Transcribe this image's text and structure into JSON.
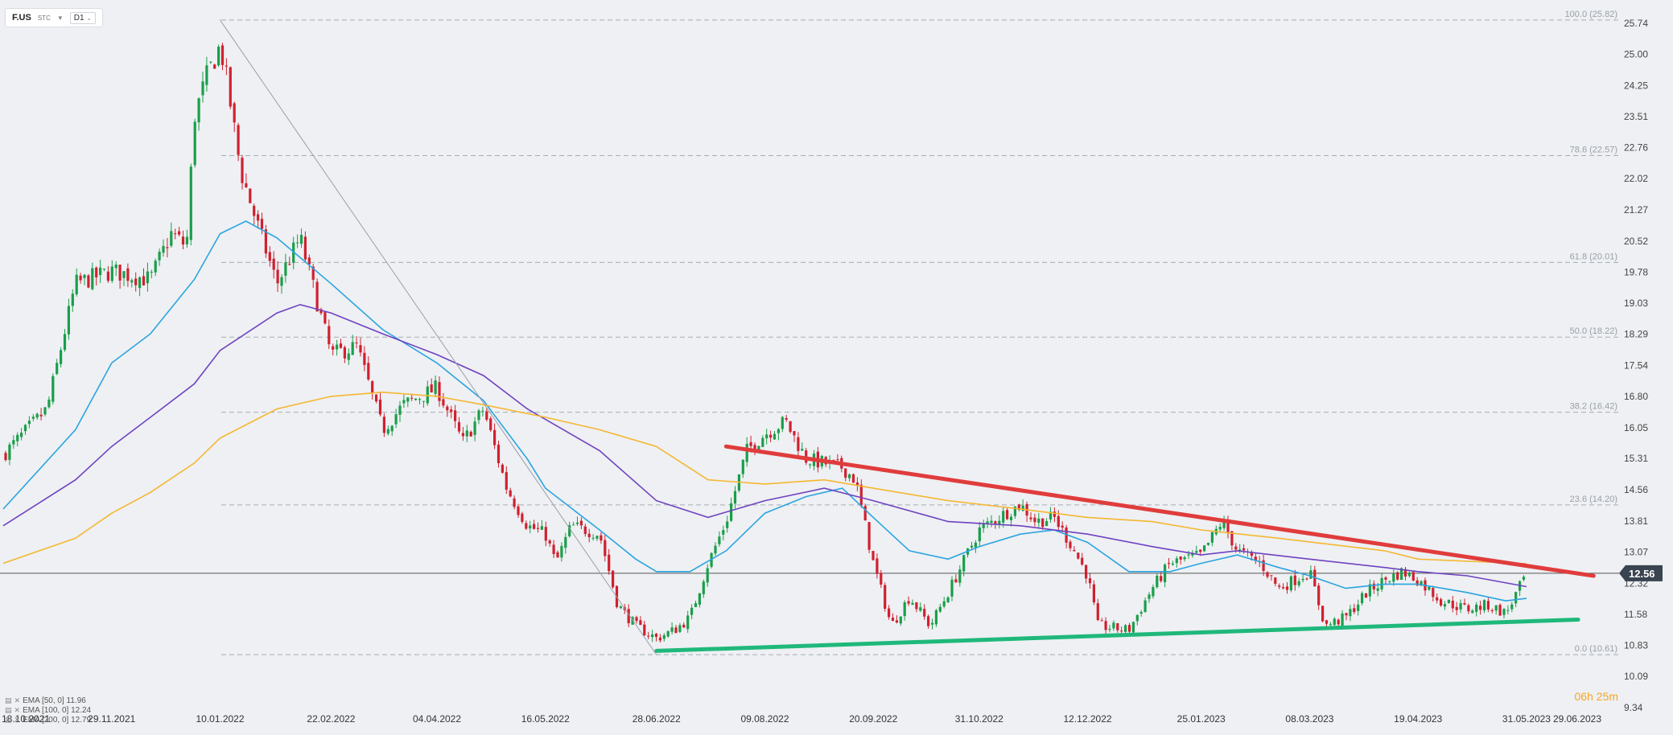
{
  "toolbar": {
    "symbol": "F.US",
    "market": "STC",
    "timeframe": "D1"
  },
  "legend": [
    {
      "label": "EMA  [50, 0]  11.96",
      "color": "#2aa4e0"
    },
    {
      "label": "EMA  [100, 0]  12.24",
      "color": "#6f42c1"
    },
    {
      "label": "EMA  [200, 0]  12.79",
      "color": "#f5b731"
    }
  ],
  "timer": {
    "hours": "06",
    "h_unit": "h",
    "minutes": "25",
    "m_unit": "m"
  },
  "chart_data": {
    "type": "candlestick",
    "y_axis": {
      "range": [
        9.34,
        26.3
      ],
      "ticks": [
        "25.74",
        "25.00",
        "24.25",
        "23.51",
        "22.76",
        "22.02",
        "21.27",
        "20.52",
        "19.78",
        "19.03",
        "18.29",
        "17.54",
        "16.80",
        "16.05",
        "15.31",
        "14.56",
        "13.81",
        "13.07",
        "12.32",
        "11.58",
        "10.83",
        "10.09",
        "9.34"
      ]
    },
    "x_axis": {
      "ticks": [
        "18.10.2021",
        "29.11.2021",
        "10.01.2022",
        "22.02.2022",
        "04.04.2022",
        "16.05.2022",
        "28.06.2022",
        "09.08.2022",
        "20.09.2022",
        "31.10.2022",
        "12.12.2022",
        "25.01.2023",
        "08.03.2023",
        "19.04.2023",
        "31.05.2023",
        "29.06.2023"
      ]
    },
    "current_price": {
      "label": "12.56",
      "value": 12.56
    },
    "fibonacci": [
      {
        "label": "100.0 (25.82)",
        "value": 25.82
      },
      {
        "label": "78.6 (22.57)",
        "value": 22.57
      },
      {
        "label": "61.8 (20.01)",
        "value": 20.01
      },
      {
        "label": "50.0 (18.22)",
        "value": 18.22
      },
      {
        "label": "38.2 (16.42)",
        "value": 16.42
      },
      {
        "label": "23.6 (14.20)",
        "value": 14.2
      },
      {
        "label": "0.0 (10.61)",
        "value": 10.61
      }
    ],
    "price_path": [
      [
        "18.10.2021",
        15.4
      ],
      [
        "04.11.2021",
        16.5
      ],
      [
        "15.11.2021",
        19.5
      ],
      [
        "29.11.2021",
        19.8
      ],
      [
        "14.12.2021",
        19.6
      ],
      [
        "22.12.2021",
        20.7
      ],
      [
        "28.12.2021",
        20.4
      ],
      [
        "31.12.2021",
        23.5
      ],
      [
        "05.01.2022",
        24.5
      ],
      [
        "10.01.2022",
        25.2
      ],
      [
        "12.01.2022",
        24.6
      ],
      [
        "18.01.2022",
        22.2
      ],
      [
        "24.01.2022",
        21.0
      ],
      [
        "01.02.2022",
        19.5
      ],
      [
        "10.02.2022",
        20.6
      ],
      [
        "22.02.2022",
        17.8
      ],
      [
        "04.03.2022",
        18.0
      ],
      [
        "14.03.2022",
        16.0
      ],
      [
        "22.03.2022",
        16.6
      ],
      [
        "04.04.2022",
        17.0
      ],
      [
        "14.04.2022",
        15.7
      ],
      [
        "22.04.2022",
        16.5
      ],
      [
        "01.05.2022",
        14.6
      ],
      [
        "09.05.2022",
        13.7
      ],
      [
        "16.05.2022",
        13.5
      ],
      [
        "20.05.2022",
        12.8
      ],
      [
        "26.05.2022",
        13.7
      ],
      [
        "06.06.2022",
        13.5
      ],
      [
        "13.06.2022",
        11.8
      ],
      [
        "20.06.2022",
        11.3
      ],
      [
        "28.06.2022",
        11.0
      ],
      [
        "05.07.2022",
        11.2
      ],
      [
        "11.07.2022",
        11.5
      ],
      [
        "18.07.2022",
        12.8
      ],
      [
        "25.07.2022",
        13.8
      ],
      [
        "02.08.2022",
        15.5
      ],
      [
        "09.08.2022",
        15.9
      ],
      [
        "17.08.2022",
        16.2
      ],
      [
        "25.08.2022",
        15.3
      ],
      [
        "01.09.2022",
        15.2
      ],
      [
        "08.09.2022",
        15.1
      ],
      [
        "13.09.2022",
        14.8
      ],
      [
        "20.09.2022",
        12.8
      ],
      [
        "27.09.2022",
        11.3
      ],
      [
        "04.10.2022",
        12.0
      ],
      [
        "12.10.2022",
        11.3
      ],
      [
        "19.10.2022",
        12.1
      ],
      [
        "31.10.2022",
        13.6
      ],
      [
        "10.11.2022",
        14.0
      ],
      [
        "16.11.2022",
        14.2
      ],
      [
        "22.11.2022",
        13.8
      ],
      [
        "29.11.2022",
        13.9
      ],
      [
        "06.12.2022",
        13.2
      ],
      [
        "12.12.2022",
        12.5
      ],
      [
        "16.12.2022",
        11.3
      ],
      [
        "28.12.2022",
        11.2
      ],
      [
        "06.01.2023",
        12.2
      ],
      [
        "13.01.2023",
        12.8
      ],
      [
        "25.01.2023",
        13.0
      ],
      [
        "02.02.2023",
        13.8
      ],
      [
        "08.02.2023",
        13.1
      ],
      [
        "17.02.2023",
        12.8
      ],
      [
        "24.02.2023",
        12.2
      ],
      [
        "08.03.2023",
        12.6
      ],
      [
        "14.03.2023",
        11.3
      ],
      [
        "22.03.2023",
        11.5
      ],
      [
        "30.03.2023",
        12.1
      ],
      [
        "06.04.2023",
        12.4
      ],
      [
        "13.04.2023",
        12.6
      ],
      [
        "19.04.2023",
        12.4
      ],
      [
        "28.04.2023",
        11.9
      ],
      [
        "08.05.2023",
        11.7
      ],
      [
        "16.05.2023",
        11.8
      ],
      [
        "23.05.2023",
        11.6
      ],
      [
        "29.05.2023",
        12.3
      ],
      [
        "31.05.2023",
        12.56
      ]
    ],
    "ema_series": [
      {
        "name": "EMA [50, 0]",
        "color": "#2aa4e0",
        "points": [
          [
            "18.10.2021",
            14.1
          ],
          [
            "15.11.2021",
            16.0
          ],
          [
            "29.11.2021",
            17.6
          ],
          [
            "14.12.2021",
            18.3
          ],
          [
            "31.12.2021",
            19.6
          ],
          [
            "10.01.2022",
            20.7
          ],
          [
            "20.01.2022",
            21.0
          ],
          [
            "01.02.2022",
            20.6
          ],
          [
            "22.02.2022",
            19.5
          ],
          [
            "14.03.2022",
            18.4
          ],
          [
            "04.04.2022",
            17.6
          ],
          [
            "22.04.2022",
            16.7
          ],
          [
            "09.05.2022",
            15.3
          ],
          [
            "16.05.2022",
            14.6
          ],
          [
            "06.06.2022",
            13.6
          ],
          [
            "20.06.2022",
            12.9
          ],
          [
            "28.06.2022",
            12.6
          ],
          [
            "11.07.2022",
            12.6
          ],
          [
            "25.07.2022",
            13.1
          ],
          [
            "09.08.2022",
            14.0
          ],
          [
            "25.08.2022",
            14.4
          ],
          [
            "08.09.2022",
            14.6
          ],
          [
            "20.09.2022",
            13.9
          ],
          [
            "04.10.2022",
            13.1
          ],
          [
            "19.10.2022",
            12.9
          ],
          [
            "31.10.2022",
            13.2
          ],
          [
            "16.11.2022",
            13.5
          ],
          [
            "29.11.2022",
            13.6
          ],
          [
            "12.12.2022",
            13.3
          ],
          [
            "28.12.2022",
            12.6
          ],
          [
            "13.01.2023",
            12.6
          ],
          [
            "25.01.2023",
            12.8
          ],
          [
            "08.02.2023",
            13.0
          ],
          [
            "24.02.2023",
            12.7
          ],
          [
            "08.03.2023",
            12.5
          ],
          [
            "22.03.2023",
            12.2
          ],
          [
            "06.04.2023",
            12.3
          ],
          [
            "19.04.2023",
            12.3
          ],
          [
            "08.05.2023",
            12.1
          ],
          [
            "23.05.2023",
            11.9
          ],
          [
            "31.05.2023",
            11.96
          ]
        ]
      },
      {
        "name": "EMA [100, 0]",
        "color": "#6f42c1",
        "points": [
          [
            "18.10.2021",
            13.7
          ],
          [
            "15.11.2021",
            14.8
          ],
          [
            "29.11.2021",
            15.6
          ],
          [
            "14.12.2021",
            16.3
          ],
          [
            "31.12.2021",
            17.1
          ],
          [
            "10.01.2022",
            17.9
          ],
          [
            "01.02.2022",
            18.8
          ],
          [
            "10.02.2022",
            19.0
          ],
          [
            "22.02.2022",
            18.8
          ],
          [
            "14.03.2022",
            18.3
          ],
          [
            "04.04.2022",
            17.8
          ],
          [
            "22.04.2022",
            17.3
          ],
          [
            "09.05.2022",
            16.5
          ],
          [
            "06.06.2022",
            15.5
          ],
          [
            "28.06.2022",
            14.3
          ],
          [
            "18.07.2022",
            13.9
          ],
          [
            "09.08.2022",
            14.3
          ],
          [
            "01.09.2022",
            14.6
          ],
          [
            "20.09.2022",
            14.3
          ],
          [
            "19.10.2022",
            13.8
          ],
          [
            "16.11.2022",
            13.7
          ],
          [
            "12.12.2022",
            13.5
          ],
          [
            "06.01.2023",
            13.2
          ],
          [
            "25.01.2023",
            13.0
          ],
          [
            "08.02.2023",
            13.1
          ],
          [
            "08.03.2023",
            12.9
          ],
          [
            "06.04.2023",
            12.7
          ],
          [
            "19.04.2023",
            12.6
          ],
          [
            "08.05.2023",
            12.5
          ],
          [
            "31.05.2023",
            12.24
          ]
        ]
      },
      {
        "name": "EMA [200, 0]",
        "color": "#f5b731",
        "points": [
          [
            "18.10.2021",
            12.8
          ],
          [
            "15.11.2021",
            13.4
          ],
          [
            "29.11.2021",
            14.0
          ],
          [
            "14.12.2021",
            14.5
          ],
          [
            "31.12.2021",
            15.2
          ],
          [
            "10.01.2022",
            15.8
          ],
          [
            "01.02.2022",
            16.5
          ],
          [
            "22.02.2022",
            16.8
          ],
          [
            "14.03.2022",
            16.9
          ],
          [
            "04.04.2022",
            16.8
          ],
          [
            "22.04.2022",
            16.6
          ],
          [
            "16.05.2022",
            16.3
          ],
          [
            "06.06.2022",
            16.0
          ],
          [
            "28.06.2022",
            15.6
          ],
          [
            "18.07.2022",
            14.8
          ],
          [
            "09.08.2022",
            14.7
          ],
          [
            "01.09.2022",
            14.8
          ],
          [
            "20.09.2022",
            14.6
          ],
          [
            "19.10.2022",
            14.3
          ],
          [
            "16.11.2022",
            14.1
          ],
          [
            "12.12.2022",
            13.9
          ],
          [
            "06.01.2023",
            13.8
          ],
          [
            "25.01.2023",
            13.6
          ],
          [
            "24.02.2023",
            13.4
          ],
          [
            "06.04.2023",
            13.1
          ],
          [
            "19.04.2023",
            12.9
          ],
          [
            "31.05.2023",
            12.79
          ]
        ]
      }
    ],
    "trendlines": [
      {
        "name": "resistance",
        "color": "#e03c3c",
        "from": [
          "25.07.2022",
          15.6
        ],
        "to": [
          "26.06.2023",
          12.5
        ]
      },
      {
        "name": "support",
        "color": "#1fb87b",
        "from": [
          "28.06.2022",
          10.7
        ],
        "to": [
          "20.06.2023",
          11.45
        ]
      },
      {
        "name": "fib-diagonal",
        "color": "#9aa0a8",
        "from": [
          "10.01.2022",
          25.82
        ],
        "to": [
          "28.06.2022",
          10.61
        ]
      }
    ]
  }
}
